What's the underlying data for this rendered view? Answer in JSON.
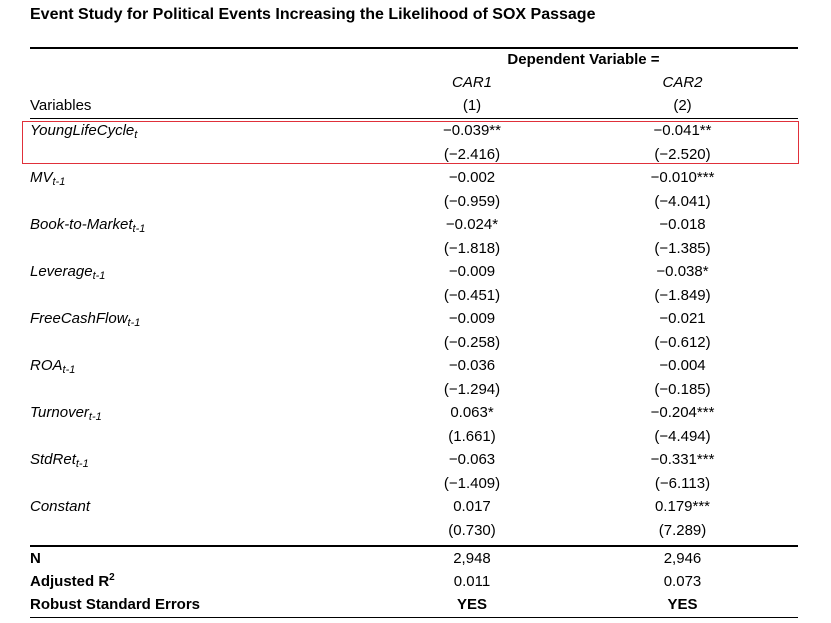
{
  "title": "Event Study for Political Events Increasing the Likelihood of SOX Passage",
  "header": {
    "dependent_variable": "Dependent Variable =",
    "col1_name": "CAR1",
    "col2_name": "CAR2",
    "variables_label": "Variables",
    "col1_num": "(1)",
    "col2_num": "(2)"
  },
  "rows": [
    {
      "name": "YoungLifeCycle",
      "sub": "t",
      "c1": "−0.039**",
      "c2": "−0.041**",
      "t1": "(−2.416)",
      "t2": "(−2.520)"
    },
    {
      "name": "MV",
      "sub": "t-1",
      "c1": "−0.002",
      "c2": "−0.010***",
      "t1": "(−0.959)",
      "t2": "(−4.041)"
    },
    {
      "name": "Book-to-Market",
      "sub": "t-1",
      "c1": "−0.024*",
      "c2": "−0.018",
      "t1": "(−1.818)",
      "t2": "(−1.385)"
    },
    {
      "name": "Leverage",
      "sub": "t-1",
      "c1": "−0.009",
      "c2": "−0.038*",
      "t1": "(−0.451)",
      "t2": "(−1.849)"
    },
    {
      "name": "FreeCashFlow",
      "sub": "t-1",
      "c1": "−0.009",
      "c2": "−0.021",
      "t1": "(−0.258)",
      "t2": "(−0.612)"
    },
    {
      "name": "ROA",
      "sub": "t-1",
      "c1": "−0.036",
      "c2": "−0.004",
      "t1": "(−1.294)",
      "t2": "(−0.185)"
    },
    {
      "name": "Turnover",
      "sub": "t-1",
      "c1": "0.063*",
      "c2": "−0.204***",
      "t1": "(1.661)",
      "t2": "(−4.494)"
    },
    {
      "name": "StdRet",
      "sub": "t-1",
      "c1": "−0.063",
      "c2": "−0.331***",
      "t1": "(−1.409)",
      "t2": "(−6.113)"
    },
    {
      "name": "Constant",
      "sub": "",
      "c1": "0.017",
      "c2": "0.179***",
      "t1": "(0.730)",
      "t2": "(7.289)"
    }
  ],
  "stats": [
    {
      "label": "N",
      "sup": "",
      "c1": "2,948",
      "c2": "2,946",
      "bold_values": false
    },
    {
      "label": "Adjusted R",
      "sup": "2",
      "c1": "0.011",
      "c2": "0.073",
      "bold_values": false
    },
    {
      "label": "Robust Standard Errors",
      "sup": "",
      "c1": "YES",
      "c2": "YES",
      "bold_values": true
    }
  ],
  "colors": {
    "highlight_border": "#e0303a"
  }
}
